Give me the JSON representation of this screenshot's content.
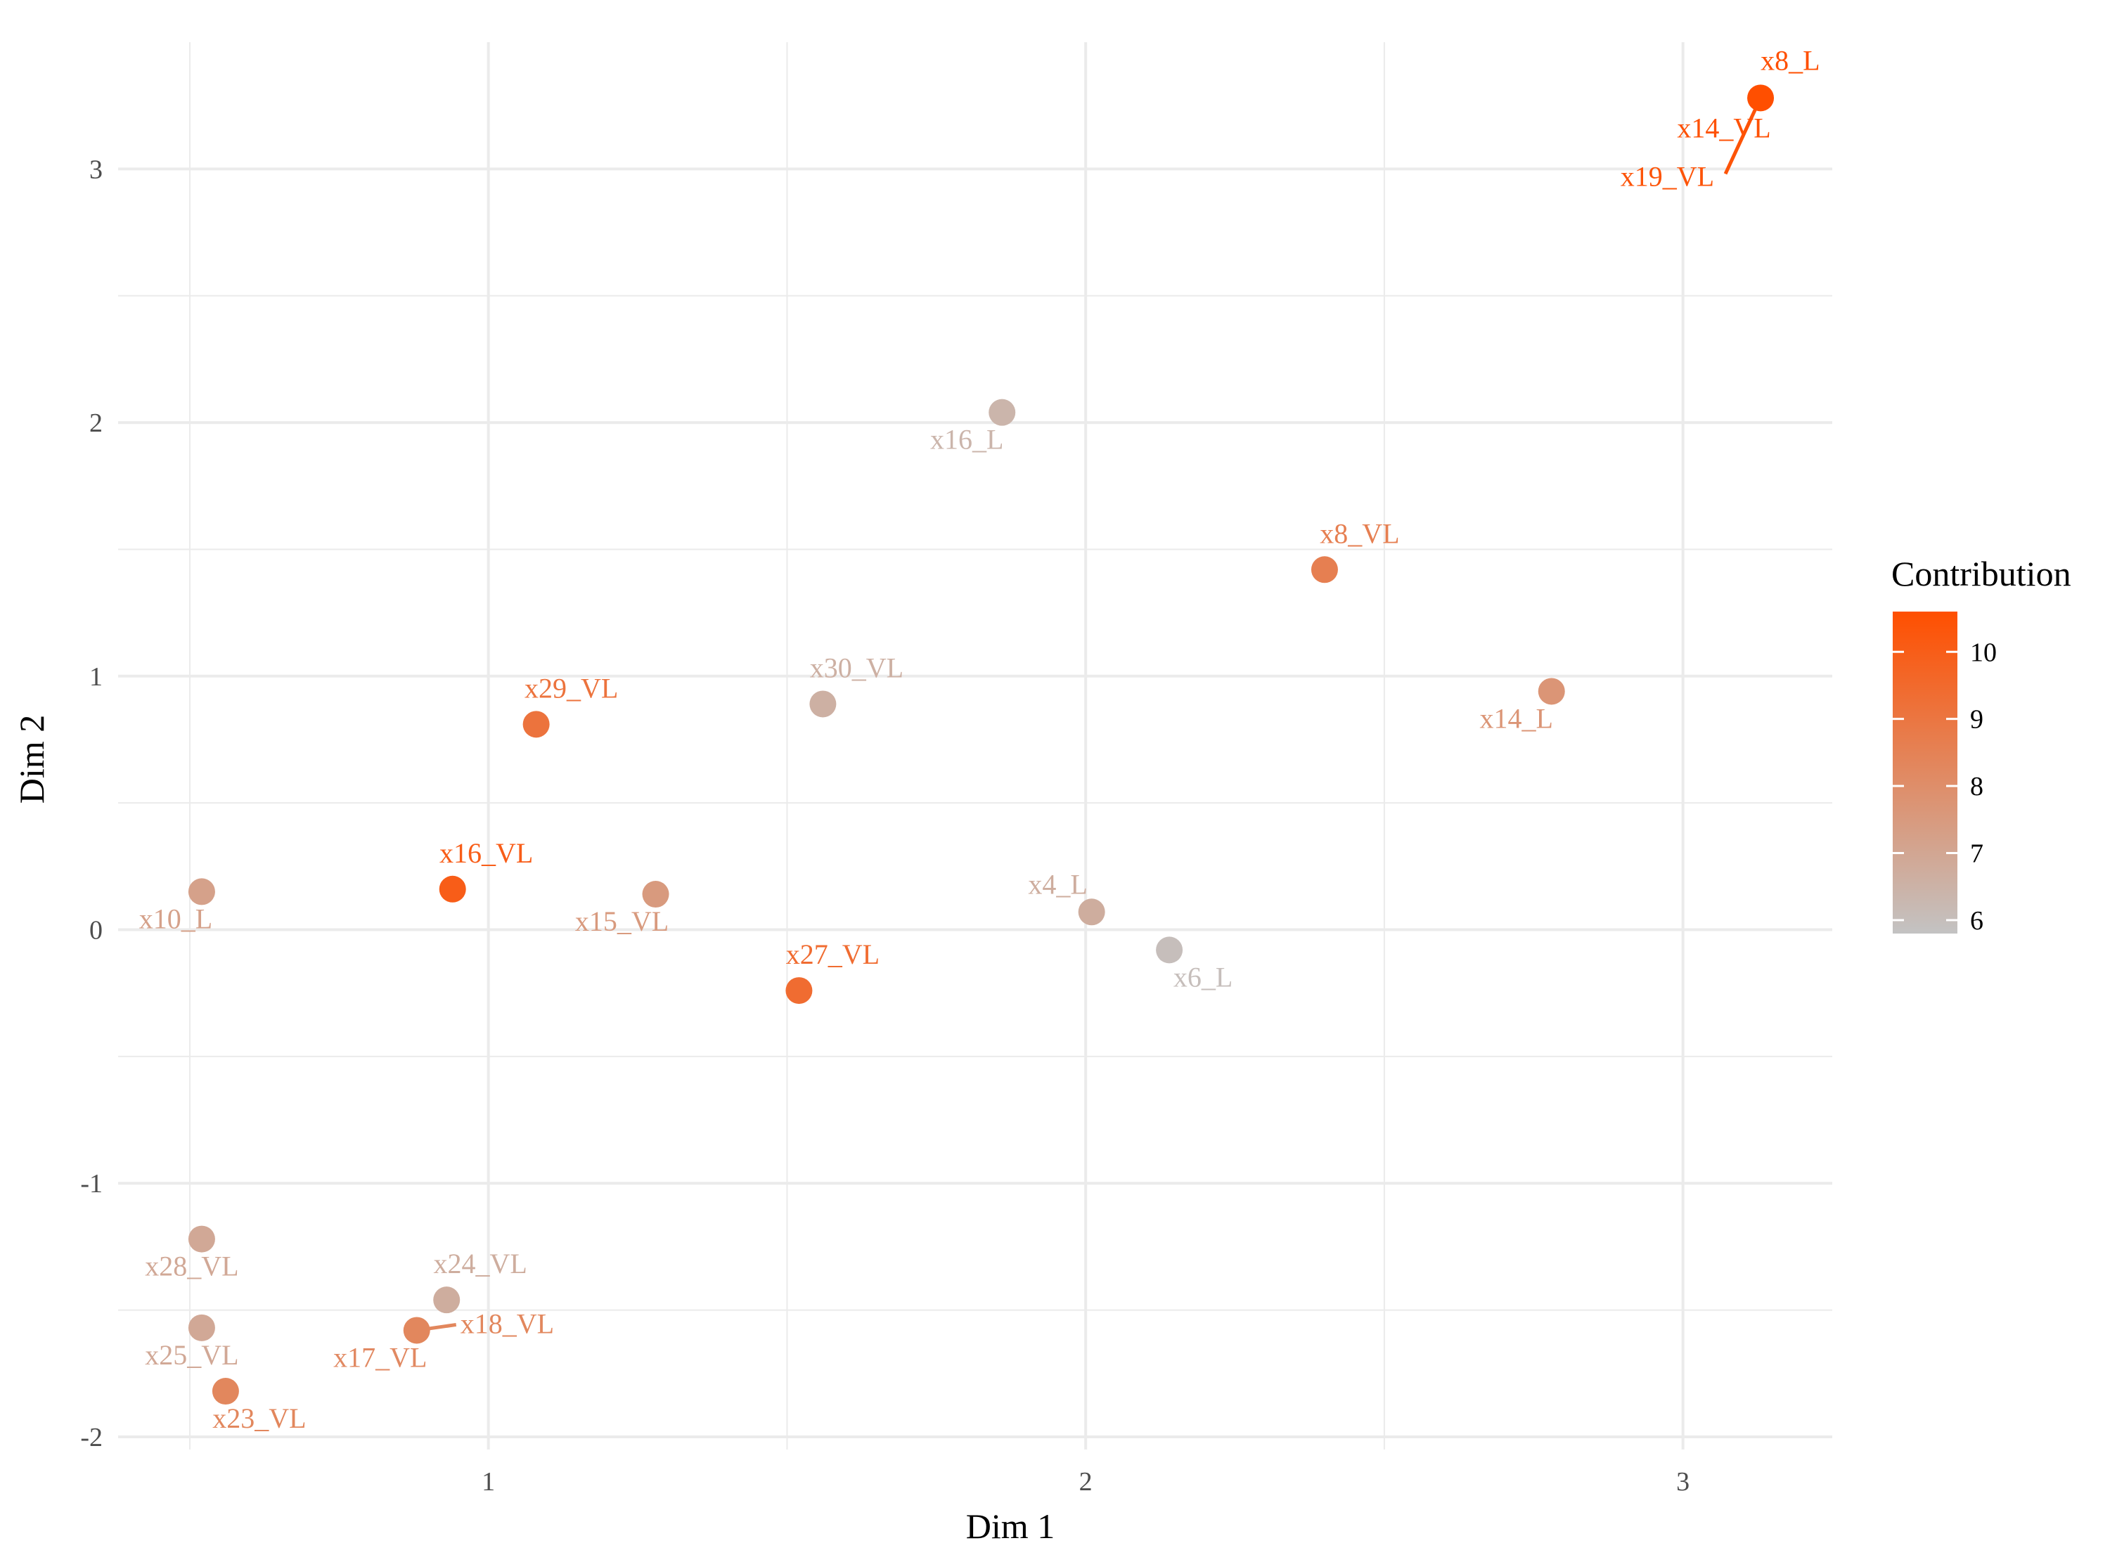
{
  "chart_data": {
    "type": "scatter",
    "title": "",
    "xlabel": "Dim 1",
    "ylabel": "Dim 2",
    "xlim": [
      0.38,
      3.25
    ],
    "ylim": [
      -2.05,
      3.5
    ],
    "x_ticks": [
      1,
      2,
      3
    ],
    "y_ticks": [
      -2,
      -1,
      0,
      1,
      2,
      3
    ],
    "grid": true,
    "legend": {
      "title": "Contribution",
      "placement": "right",
      "type": "colorbar",
      "min": 5.8,
      "max": 10.6,
      "ticks": [
        6,
        7,
        8,
        9,
        10
      ],
      "low_color": "#c3c3c3",
      "high_color": "#ff4f00"
    },
    "points": [
      {
        "label": "x8_L",
        "x": 3.13,
        "y": 3.28,
        "contrib": 10.6
      },
      {
        "label": "x14_VL",
        "x": 3.13,
        "y": 3.28,
        "contrib": 10.5
      },
      {
        "label": "x19_VL",
        "x": 3.13,
        "y": 3.28,
        "contrib": 10.4
      },
      {
        "label": "x16_L",
        "x": 1.86,
        "y": 2.04,
        "contrib": 6.4
      },
      {
        "label": "x8_VL",
        "x": 2.4,
        "y": 1.42,
        "contrib": 8.6
      },
      {
        "label": "x14_L",
        "x": 2.78,
        "y": 0.94,
        "contrib": 7.7
      },
      {
        "label": "x29_VL",
        "x": 1.08,
        "y": 0.81,
        "contrib": 9.1
      },
      {
        "label": "x30_VL",
        "x": 1.56,
        "y": 0.89,
        "contrib": 6.6
      },
      {
        "label": "x16_VL",
        "x": 0.94,
        "y": 0.16,
        "contrib": 10.0
      },
      {
        "label": "x15_VL",
        "x": 1.28,
        "y": 0.14,
        "contrib": 7.5
      },
      {
        "label": "x10_L",
        "x": 0.52,
        "y": 0.15,
        "contrib": 7.2
      },
      {
        "label": "x4_L",
        "x": 2.01,
        "y": 0.07,
        "contrib": 6.7
      },
      {
        "label": "x6_L",
        "x": 2.14,
        "y": -0.08,
        "contrib": 6.0
      },
      {
        "label": "x27_VL",
        "x": 1.52,
        "y": -0.24,
        "contrib": 9.4
      },
      {
        "label": "x28_VL",
        "x": 0.52,
        "y": -1.22,
        "contrib": 6.9
      },
      {
        "label": "x24_VL",
        "x": 0.93,
        "y": -1.46,
        "contrib": 6.7
      },
      {
        "label": "x18_VL",
        "x": 0.88,
        "y": -1.58,
        "contrib": 8.3
      },
      {
        "label": "x17_VL",
        "x": 0.88,
        "y": -1.58,
        "contrib": 8.2
      },
      {
        "label": "x25_VL",
        "x": 0.52,
        "y": -1.57,
        "contrib": 6.9
      },
      {
        "label": "x23_VL",
        "x": 0.56,
        "y": -1.82,
        "contrib": 8.3
      }
    ]
  }
}
